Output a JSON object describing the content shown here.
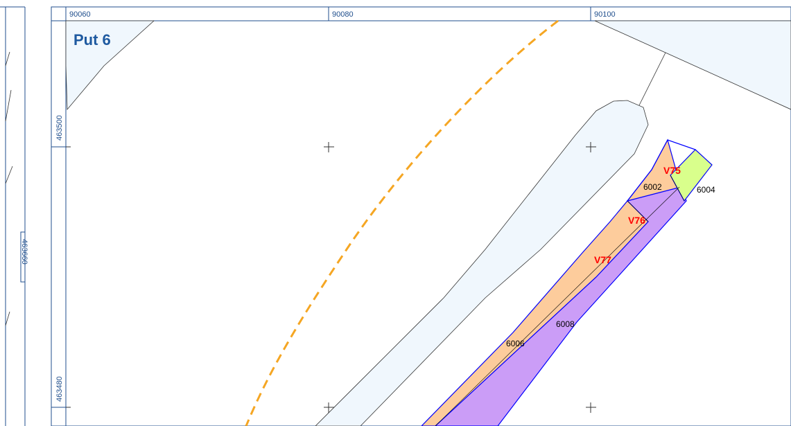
{
  "map": {
    "title": "Put 6",
    "grid_top_labels": [
      "90060",
      "90080",
      "90100"
    ],
    "grid_left_labels": [
      "463500",
      "463480"
    ],
    "left_panel_label": "463660",
    "parcels": [
      {
        "id": "6002",
        "label": "6002"
      },
      {
        "id": "6004",
        "label": "6004"
      },
      {
        "id": "6006",
        "label": "6006"
      },
      {
        "id": "6008",
        "label": "6008"
      }
    ],
    "markers": [
      {
        "id": "V75",
        "label": "V75"
      },
      {
        "id": "V76",
        "label": "V76"
      },
      {
        "id": "V77",
        "label": "V77"
      }
    ],
    "colors": {
      "frame": "#1f4e8c",
      "area_fill": "#f0f7fd",
      "parcel_orange": "#fdcc9c",
      "parcel_purple": "#cb9df7",
      "parcel_green": "#d9ff8c",
      "parcel_outline": "#0000ff",
      "route_dashed": "#f5a623",
      "marker_text": "#ff0000"
    }
  }
}
